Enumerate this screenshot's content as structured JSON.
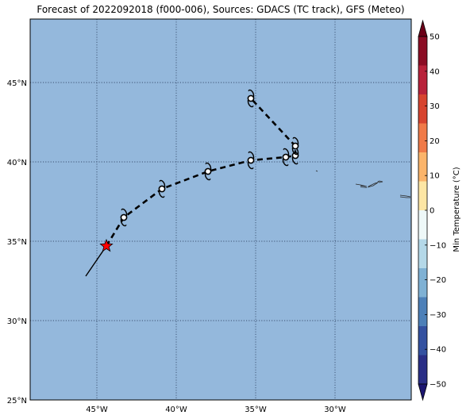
{
  "title": "Forecast of 2022092018 (f000-006), Sources: GDACS (TC track), GFS (Meteo)",
  "map": {
    "lon_range": [
      -49.2,
      -25.2
    ],
    "lat_range": [
      25,
      49
    ],
    "ocean_color": "#94b8dc",
    "gridlines": "dotted",
    "lon_ticks": [
      {
        "value": -45,
        "label": "45°W"
      },
      {
        "value": -40,
        "label": "40°W"
      },
      {
        "value": -35,
        "label": "35°W"
      },
      {
        "value": -30,
        "label": "30°W"
      }
    ],
    "lat_ticks": [
      {
        "value": 45,
        "label": "45°N"
      },
      {
        "value": 40,
        "label": "40°N"
      },
      {
        "value": 35,
        "label": "35°N"
      },
      {
        "value": 30,
        "label": "30°N"
      },
      {
        "value": 25,
        "label": "25°N"
      }
    ]
  },
  "track": {
    "past_track": [
      [
        -45.7,
        32.8
      ],
      [
        -44.4,
        34.7
      ]
    ],
    "current_position": {
      "lon": -44.4,
      "lat": 34.7,
      "marker": "star-icon",
      "color": "#ff0000"
    },
    "forecast_track": [
      [
        -44.4,
        34.7
      ],
      [
        -43.3,
        36.5
      ],
      [
        -40.9,
        38.3
      ],
      [
        -38.0,
        39.4
      ],
      [
        -35.3,
        40.1
      ],
      [
        -33.1,
        40.3
      ],
      [
        -32.5,
        40.4
      ],
      [
        -32.5,
        41.0
      ],
      [
        -35.3,
        44.0
      ]
    ],
    "forecast_points": [
      [
        -43.3,
        36.5
      ],
      [
        -40.9,
        38.3
      ],
      [
        -38.0,
        39.4
      ],
      [
        -35.3,
        40.1
      ],
      [
        -33.1,
        40.3
      ],
      [
        -32.5,
        40.4
      ],
      [
        -32.5,
        41.0
      ],
      [
        -35.3,
        44.0
      ]
    ],
    "point_symbol": "hurricane-symbol-icon"
  },
  "islands": [
    [
      [
        -31.2,
        39.45
      ],
      [
        -31.1,
        39.4
      ]
    ],
    [
      [
        -28.7,
        38.6
      ],
      [
        -28.4,
        38.55
      ],
      [
        -28.0,
        38.45
      ],
      [
        -28.4,
        38.5
      ]
    ],
    [
      [
        -27.95,
        38.4
      ],
      [
        -27.6,
        38.5
      ],
      [
        -27.3,
        38.7
      ],
      [
        -27.5,
        38.65
      ],
      [
        -27.9,
        38.45
      ]
    ],
    [
      [
        -28.4,
        38.42
      ],
      [
        -28.0,
        38.38
      ],
      [
        -28.15,
        38.4
      ]
    ],
    [
      [
        -27.2,
        38.8
      ],
      [
        -27.0,
        38.75
      ],
      [
        -27.2,
        38.7
      ],
      [
        -27.3,
        38.75
      ],
      [
        -27.2,
        38.8
      ]
    ],
    [
      [
        -25.9,
        37.9
      ],
      [
        -25.5,
        37.85
      ],
      [
        -25.25,
        37.8
      ]
    ],
    [
      [
        -25.9,
        37.8
      ],
      [
        -25.5,
        37.75
      ],
      [
        -25.25,
        37.75
      ]
    ]
  ],
  "colorbar": {
    "label": "Min Temperature (°C)",
    "ticks": [
      "50",
      "40",
      "30",
      "20",
      "10",
      "0",
      "−10",
      "−20",
      "−30",
      "−40",
      "−50"
    ],
    "colors": [
      "#8b0d24",
      "#b8223a",
      "#d7442f",
      "#f07a48",
      "#fbb46a",
      "#fde6a4",
      "#eef8f8",
      "#b4d8e8",
      "#7fb1d4",
      "#4d80b8",
      "#3451a0",
      "#2a2e86"
    ],
    "over_color": "#6b0018",
    "under_color": "#1c1670"
  }
}
